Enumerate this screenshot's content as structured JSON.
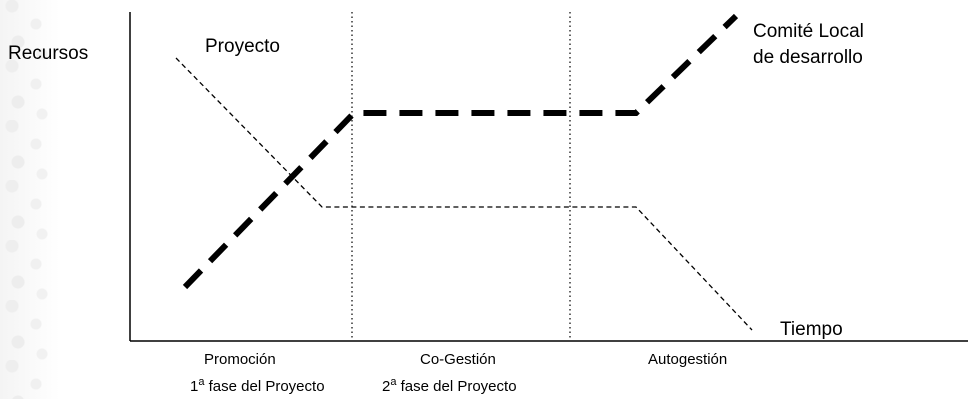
{
  "diagram": {
    "y_label": "Recursos",
    "x_label": "Tiempo",
    "series": [
      {
        "name": "Proyecto",
        "style": "dashed-thin"
      },
      {
        "name_line1": "Comité Local",
        "name_line2": "de desarrollo",
        "style": "dashed-thick"
      }
    ],
    "phases": [
      {
        "label": "Promoción",
        "sub_num": "1",
        "sub_sup": "a",
        "sub_text": " fase del Proyecto"
      },
      {
        "label": "Co-Gestión",
        "sub_num": "2",
        "sub_sup": "a",
        "sub_text": " fase del Proyecto"
      },
      {
        "label": "Autogestión"
      }
    ],
    "colors": {
      "line": "#000000",
      "background": "#ffffff"
    }
  }
}
